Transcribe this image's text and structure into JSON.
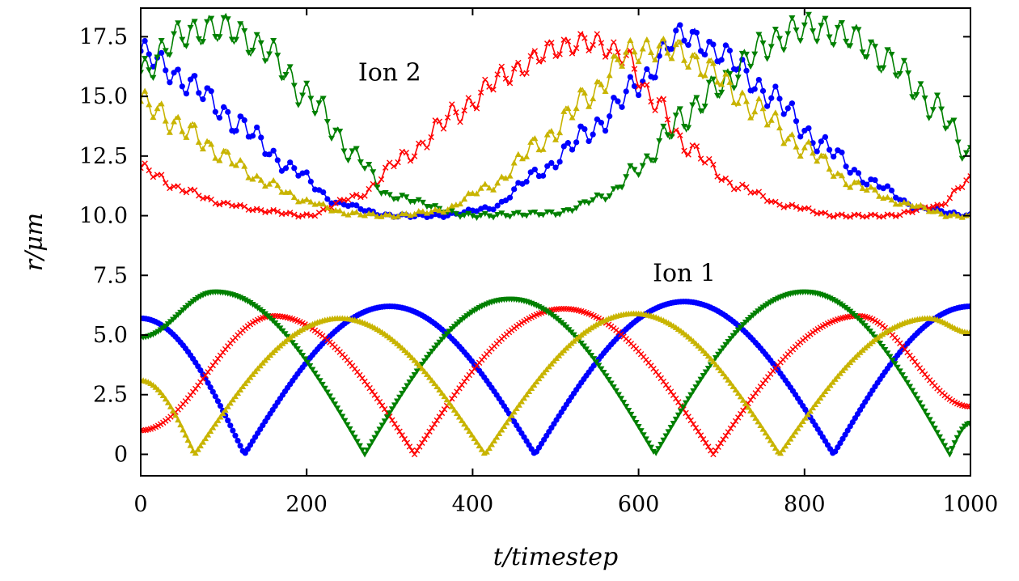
{
  "chart_data": {
    "type": "line",
    "xlabel": "t/timestep",
    "ylabel": "r/μm",
    "xlim": [
      0,
      1000
    ],
    "ylim": [
      -0.9,
      18.7
    ],
    "x_ticks": [
      "0",
      "200",
      "400",
      "600",
      "800",
      "1000"
    ],
    "y_ticks": [
      "0",
      "2.5",
      "5.0",
      "7.5",
      "10.0",
      "12.5",
      "15.0",
      "17.5"
    ],
    "annotations": [
      {
        "text": "Ion 2",
        "x": 300,
        "y": 16.0
      },
      {
        "text": "Ion 1",
        "x": 655,
        "y": 7.6
      }
    ],
    "grid": false,
    "series": [
      {
        "ion": 1,
        "color": "#0000ff",
        "marker": "circle",
        "x": [
          0,
          125,
          300,
          475,
          655,
          835,
          1000
        ],
        "y": [
          5.7,
          0.0,
          6.2,
          0.0,
          6.4,
          0.0,
          6.2
        ]
      },
      {
        "ion": 1,
        "color": "#ff0000",
        "marker": "x",
        "x": [
          0,
          160,
          330,
          510,
          690,
          865,
          1000
        ],
        "y": [
          1.0,
          5.8,
          0.0,
          6.1,
          0.0,
          5.8,
          2.0
        ]
      },
      {
        "ion": 1,
        "color": "#008000",
        "marker": "triangle-down",
        "x": [
          0,
          90,
          270,
          445,
          620,
          800,
          975,
          1000
        ],
        "y": [
          4.9,
          6.8,
          0.0,
          6.5,
          0.0,
          6.8,
          0.0,
          1.3
        ]
      },
      {
        "ion": 1,
        "color": "#c8b400",
        "marker": "triangle-up",
        "x": [
          0,
          65,
          240,
          415,
          595,
          770,
          950,
          1000
        ],
        "y": [
          3.1,
          0.0,
          5.7,
          0.0,
          5.9,
          0.0,
          5.7,
          5.1
        ]
      },
      {
        "ion": 2,
        "color": "#0000ff",
        "marker": "circle",
        "x": [
          0,
          60,
          120,
          180,
          240,
          300,
          360,
          420,
          480,
          540,
          600,
          650,
          700,
          760,
          820,
          880,
          940,
          1000
        ],
        "y": [
          16.9,
          15.5,
          13.8,
          12.0,
          10.5,
          10.0,
          10.0,
          10.3,
          11.8,
          13.5,
          15.5,
          17.6,
          16.8,
          15.0,
          13.0,
          11.4,
          10.3,
          10.0
        ],
        "wiggle": 0.45
      },
      {
        "ion": 2,
        "color": "#ff0000",
        "marker": "x",
        "x": [
          0,
          50,
          100,
          150,
          200,
          260,
          320,
          380,
          440,
          500,
          540,
          580,
          620,
          660,
          720,
          780,
          840,
          900,
          960,
          1000
        ],
        "y": [
          12.0,
          11.1,
          10.5,
          10.2,
          10.0,
          10.8,
          12.5,
          14.3,
          15.9,
          17.0,
          17.3,
          16.8,
          14.8,
          12.8,
          11.2,
          10.4,
          10.0,
          10.0,
          10.4,
          11.5
        ],
        "wiggle": 0.4
      },
      {
        "ion": 2,
        "color": "#008000",
        "marker": "triangle-down",
        "x": [
          0,
          50,
          100,
          150,
          200,
          260,
          300,
          400,
          500,
          560,
          600,
          650,
          700,
          750,
          800,
          850,
          900,
          960,
          1000
        ],
        "y": [
          16.0,
          17.6,
          17.9,
          17.0,
          15.0,
          12.5,
          10.8,
          10.0,
          10.1,
          10.8,
          12.0,
          14.0,
          15.5,
          17.1,
          17.9,
          17.6,
          16.5,
          14.5,
          12.5
        ],
        "wiggle": 0.55
      },
      {
        "ion": 2,
        "color": "#c8b400",
        "marker": "triangle-up",
        "x": [
          0,
          50,
          100,
          150,
          200,
          250,
          300,
          360,
          420,
          480,
          540,
          590,
          640,
          680,
          740,
          800,
          860,
          920,
          980,
          1000
        ],
        "y": [
          14.8,
          13.7,
          12.5,
          11.4,
          10.6,
          10.1,
          10.0,
          10.2,
          11.2,
          13.0,
          15.0,
          16.9,
          17.0,
          16.2,
          14.5,
          12.8,
          11.3,
          10.5,
          10.0,
          10.0
        ],
        "wiggle": 0.45
      }
    ]
  }
}
